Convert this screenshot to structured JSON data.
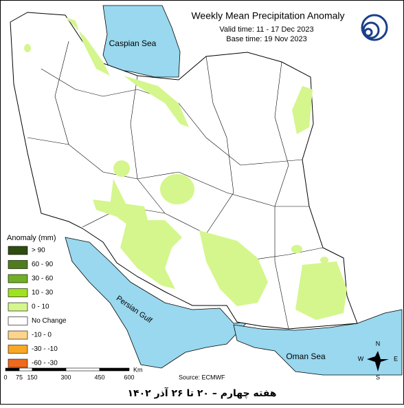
{
  "header": {
    "title": "Weekly Mean Precipitation Anomaly",
    "valid_time": "Valid time: 11 - 17 Dec 2023",
    "base_time": "Base time: 19 Nov 2023"
  },
  "map_labels": {
    "caspian": "Caspian Sea",
    "gulf": "Persian Gulf",
    "oman": "Oman Sea"
  },
  "legend": {
    "title": "Anomaly (mm)",
    "items": [
      {
        "label": "> 90",
        "color": "#2e4d0f"
      },
      {
        "label": "60 - 90",
        "color": "#4f7d1b"
      },
      {
        "label": "30 - 60",
        "color": "#6fb026"
      },
      {
        "label": "10 - 30",
        "color": "#9fe21e"
      },
      {
        "label": "0 - 10",
        "color": "#d4f68c"
      },
      {
        "label": "No Change",
        "color": "#ffffff"
      },
      {
        "label": "-10 - 0",
        "color": "#fcd48c"
      },
      {
        "label": "-30 - -10",
        "color": "#f7a824"
      },
      {
        "label": "-60 - -30",
        "color": "#f06a1c"
      }
    ]
  },
  "scale_bar": {
    "ticks": [
      "0",
      "75",
      "150",
      "300",
      "450",
      "600"
    ],
    "unit": "Km"
  },
  "source": "Source: ECMWF",
  "compass": {
    "n": "N",
    "e": "E",
    "s": "S",
    "w": "W"
  },
  "footer": "هفته چهارم – ۲۰ تا ۲۶ آذر ۱۴۰۲"
}
